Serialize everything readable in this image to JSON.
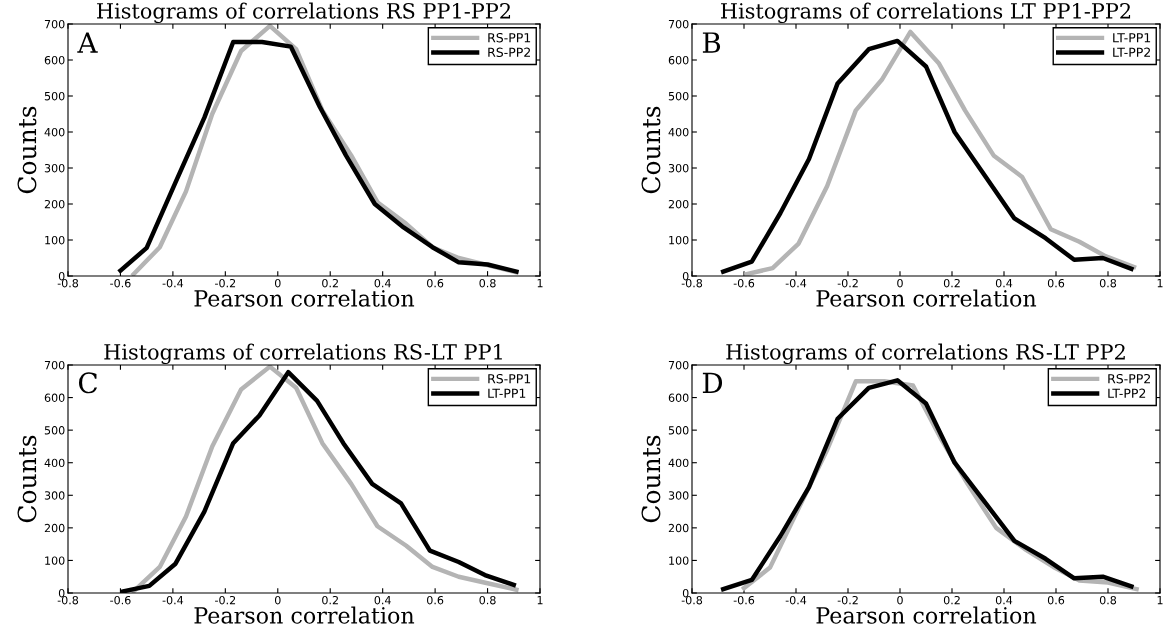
{
  "chart_data": [
    {
      "type": "line",
      "title": "Histograms of correlations RS PP1-PP2",
      "xlabel": "Pearson correlation",
      "ylabel": "Counts",
      "annotations": [
        "A"
      ],
      "xlim": [
        -0.8,
        1
      ],
      "ylim": [
        0,
        700
      ],
      "xticks": [
        -0.8,
        -0.6,
        -0.4,
        -0.2,
        0,
        0.2,
        0.4,
        0.6,
        0.8,
        1
      ],
      "yticks": [
        0,
        100,
        200,
        300,
        400,
        500,
        600,
        700
      ],
      "legend": "top right",
      "grid": false,
      "series": [
        {
          "name": "RS-PP1",
          "color": "#b4b4b4",
          "x": [
            -0.55,
            -0.45,
            -0.35,
            -0.25,
            -0.14,
            -0.03,
            0.07,
            0.17,
            0.28,
            0.38,
            0.49,
            0.59,
            0.69,
            0.8,
            0.91
          ],
          "values": [
            5,
            80,
            235,
            450,
            625,
            695,
            630,
            460,
            335,
            205,
            145,
            80,
            50,
            30,
            10
          ]
        },
        {
          "name": "RS-PP2",
          "color": "#000000",
          "x": [
            -0.6,
            -0.5,
            -0.39,
            -0.28,
            -0.17,
            -0.06,
            0.05,
            0.16,
            0.26,
            0.37,
            0.48,
            0.59,
            0.69,
            0.8,
            0.91
          ],
          "values": [
            15,
            78,
            260,
            440,
            650,
            650,
            637,
            470,
            335,
            200,
            135,
            80,
            38,
            32,
            12
          ]
        }
      ]
    },
    {
      "type": "line",
      "title": "Histograms of correlations LT PP1-PP2",
      "xlabel": "Pearson correlation",
      "ylabel": "Counts",
      "annotations": [
        "B"
      ],
      "xlim": [
        -0.8,
        1
      ],
      "ylim": [
        0,
        700
      ],
      "xticks": [
        -0.8,
        -0.6,
        -0.4,
        -0.2,
        0,
        0.2,
        0.4,
        0.6,
        0.8,
        1
      ],
      "yticks": [
        0,
        100,
        200,
        300,
        400,
        500,
        600,
        700
      ],
      "legend": "top right",
      "grid": false,
      "series": [
        {
          "name": "LT-PP1",
          "color": "#b4b4b4",
          "x": [
            -0.59,
            -0.49,
            -0.39,
            -0.28,
            -0.17,
            -0.07,
            0.04,
            0.15,
            0.25,
            0.36,
            0.47,
            0.58,
            0.69,
            0.79,
            0.9
          ],
          "values": [
            5,
            22,
            90,
            250,
            460,
            545,
            678,
            590,
            460,
            335,
            275,
            130,
            95,
            55,
            25
          ]
        },
        {
          "name": "LT-PP2",
          "color": "#000000",
          "x": [
            -0.68,
            -0.57,
            -0.46,
            -0.35,
            -0.24,
            -0.12,
            -0.01,
            0.1,
            0.21,
            0.33,
            0.44,
            0.56,
            0.67,
            0.78,
            0.89
          ],
          "values": [
            12,
            40,
            175,
            325,
            535,
            630,
            653,
            582,
            400,
            275,
            160,
            105,
            45,
            50,
            20
          ]
        }
      ]
    },
    {
      "type": "line",
      "title": "Histograms of correlations RS-LT PP1",
      "xlabel": "Pearson correlation",
      "ylabel": "Counts",
      "annotations": [
        "C"
      ],
      "xlim": [
        -0.8,
        1
      ],
      "ylim": [
        0,
        700
      ],
      "xticks": [
        -0.8,
        -0.6,
        -0.4,
        -0.2,
        0,
        0.2,
        0.4,
        0.6,
        0.8,
        1
      ],
      "yticks": [
        0,
        100,
        200,
        300,
        400,
        500,
        600,
        700
      ],
      "legend": "top right",
      "grid": false,
      "series": [
        {
          "name": "RS-PP1",
          "color": "#b4b4b4",
          "x": [
            -0.55,
            -0.45,
            -0.35,
            -0.25,
            -0.14,
            -0.03,
            0.07,
            0.17,
            0.28,
            0.38,
            0.49,
            0.59,
            0.69,
            0.8,
            0.91
          ],
          "values": [
            5,
            80,
            235,
            450,
            625,
            695,
            630,
            460,
            335,
            205,
            145,
            80,
            50,
            30,
            10
          ]
        },
        {
          "name": "LT-PP1",
          "color": "#000000",
          "x": [
            -0.59,
            -0.49,
            -0.39,
            -0.28,
            -0.17,
            -0.07,
            0.04,
            0.15,
            0.25,
            0.36,
            0.47,
            0.58,
            0.69,
            0.79,
            0.9
          ],
          "values": [
            5,
            22,
            90,
            250,
            460,
            545,
            678,
            590,
            460,
            335,
            275,
            130,
            95,
            55,
            25
          ]
        }
      ]
    },
    {
      "type": "line",
      "title": "Histograms of correlations RS-LT PP2",
      "xlabel": "Pearson correlation",
      "ylabel": "Counts",
      "annotations": [
        "D"
      ],
      "xlim": [
        -0.8,
        1
      ],
      "ylim": [
        0,
        700
      ],
      "xticks": [
        -0.8,
        -0.6,
        -0.4,
        -0.2,
        0,
        0.2,
        0.4,
        0.6,
        0.8,
        1
      ],
      "yticks": [
        0,
        100,
        200,
        300,
        400,
        500,
        600,
        700
      ],
      "legend": "top right",
      "grid": false,
      "series": [
        {
          "name": "RS-PP2",
          "color": "#b4b4b4",
          "x": [
            -0.6,
            -0.5,
            -0.39,
            -0.28,
            -0.17,
            -0.06,
            0.05,
            0.16,
            0.26,
            0.37,
            0.48,
            0.59,
            0.69,
            0.8,
            0.91
          ],
          "values": [
            15,
            78,
            260,
            440,
            650,
            650,
            637,
            470,
            335,
            200,
            135,
            80,
            38,
            32,
            12
          ]
        },
        {
          "name": "LT-PP2",
          "color": "#000000",
          "x": [
            -0.68,
            -0.57,
            -0.46,
            -0.35,
            -0.24,
            -0.12,
            -0.01,
            0.1,
            0.21,
            0.33,
            0.44,
            0.56,
            0.67,
            0.78,
            0.89
          ],
          "values": [
            12,
            40,
            175,
            325,
            535,
            630,
            653,
            582,
            400,
            275,
            160,
            105,
            45,
            50,
            20
          ]
        }
      ]
    }
  ]
}
